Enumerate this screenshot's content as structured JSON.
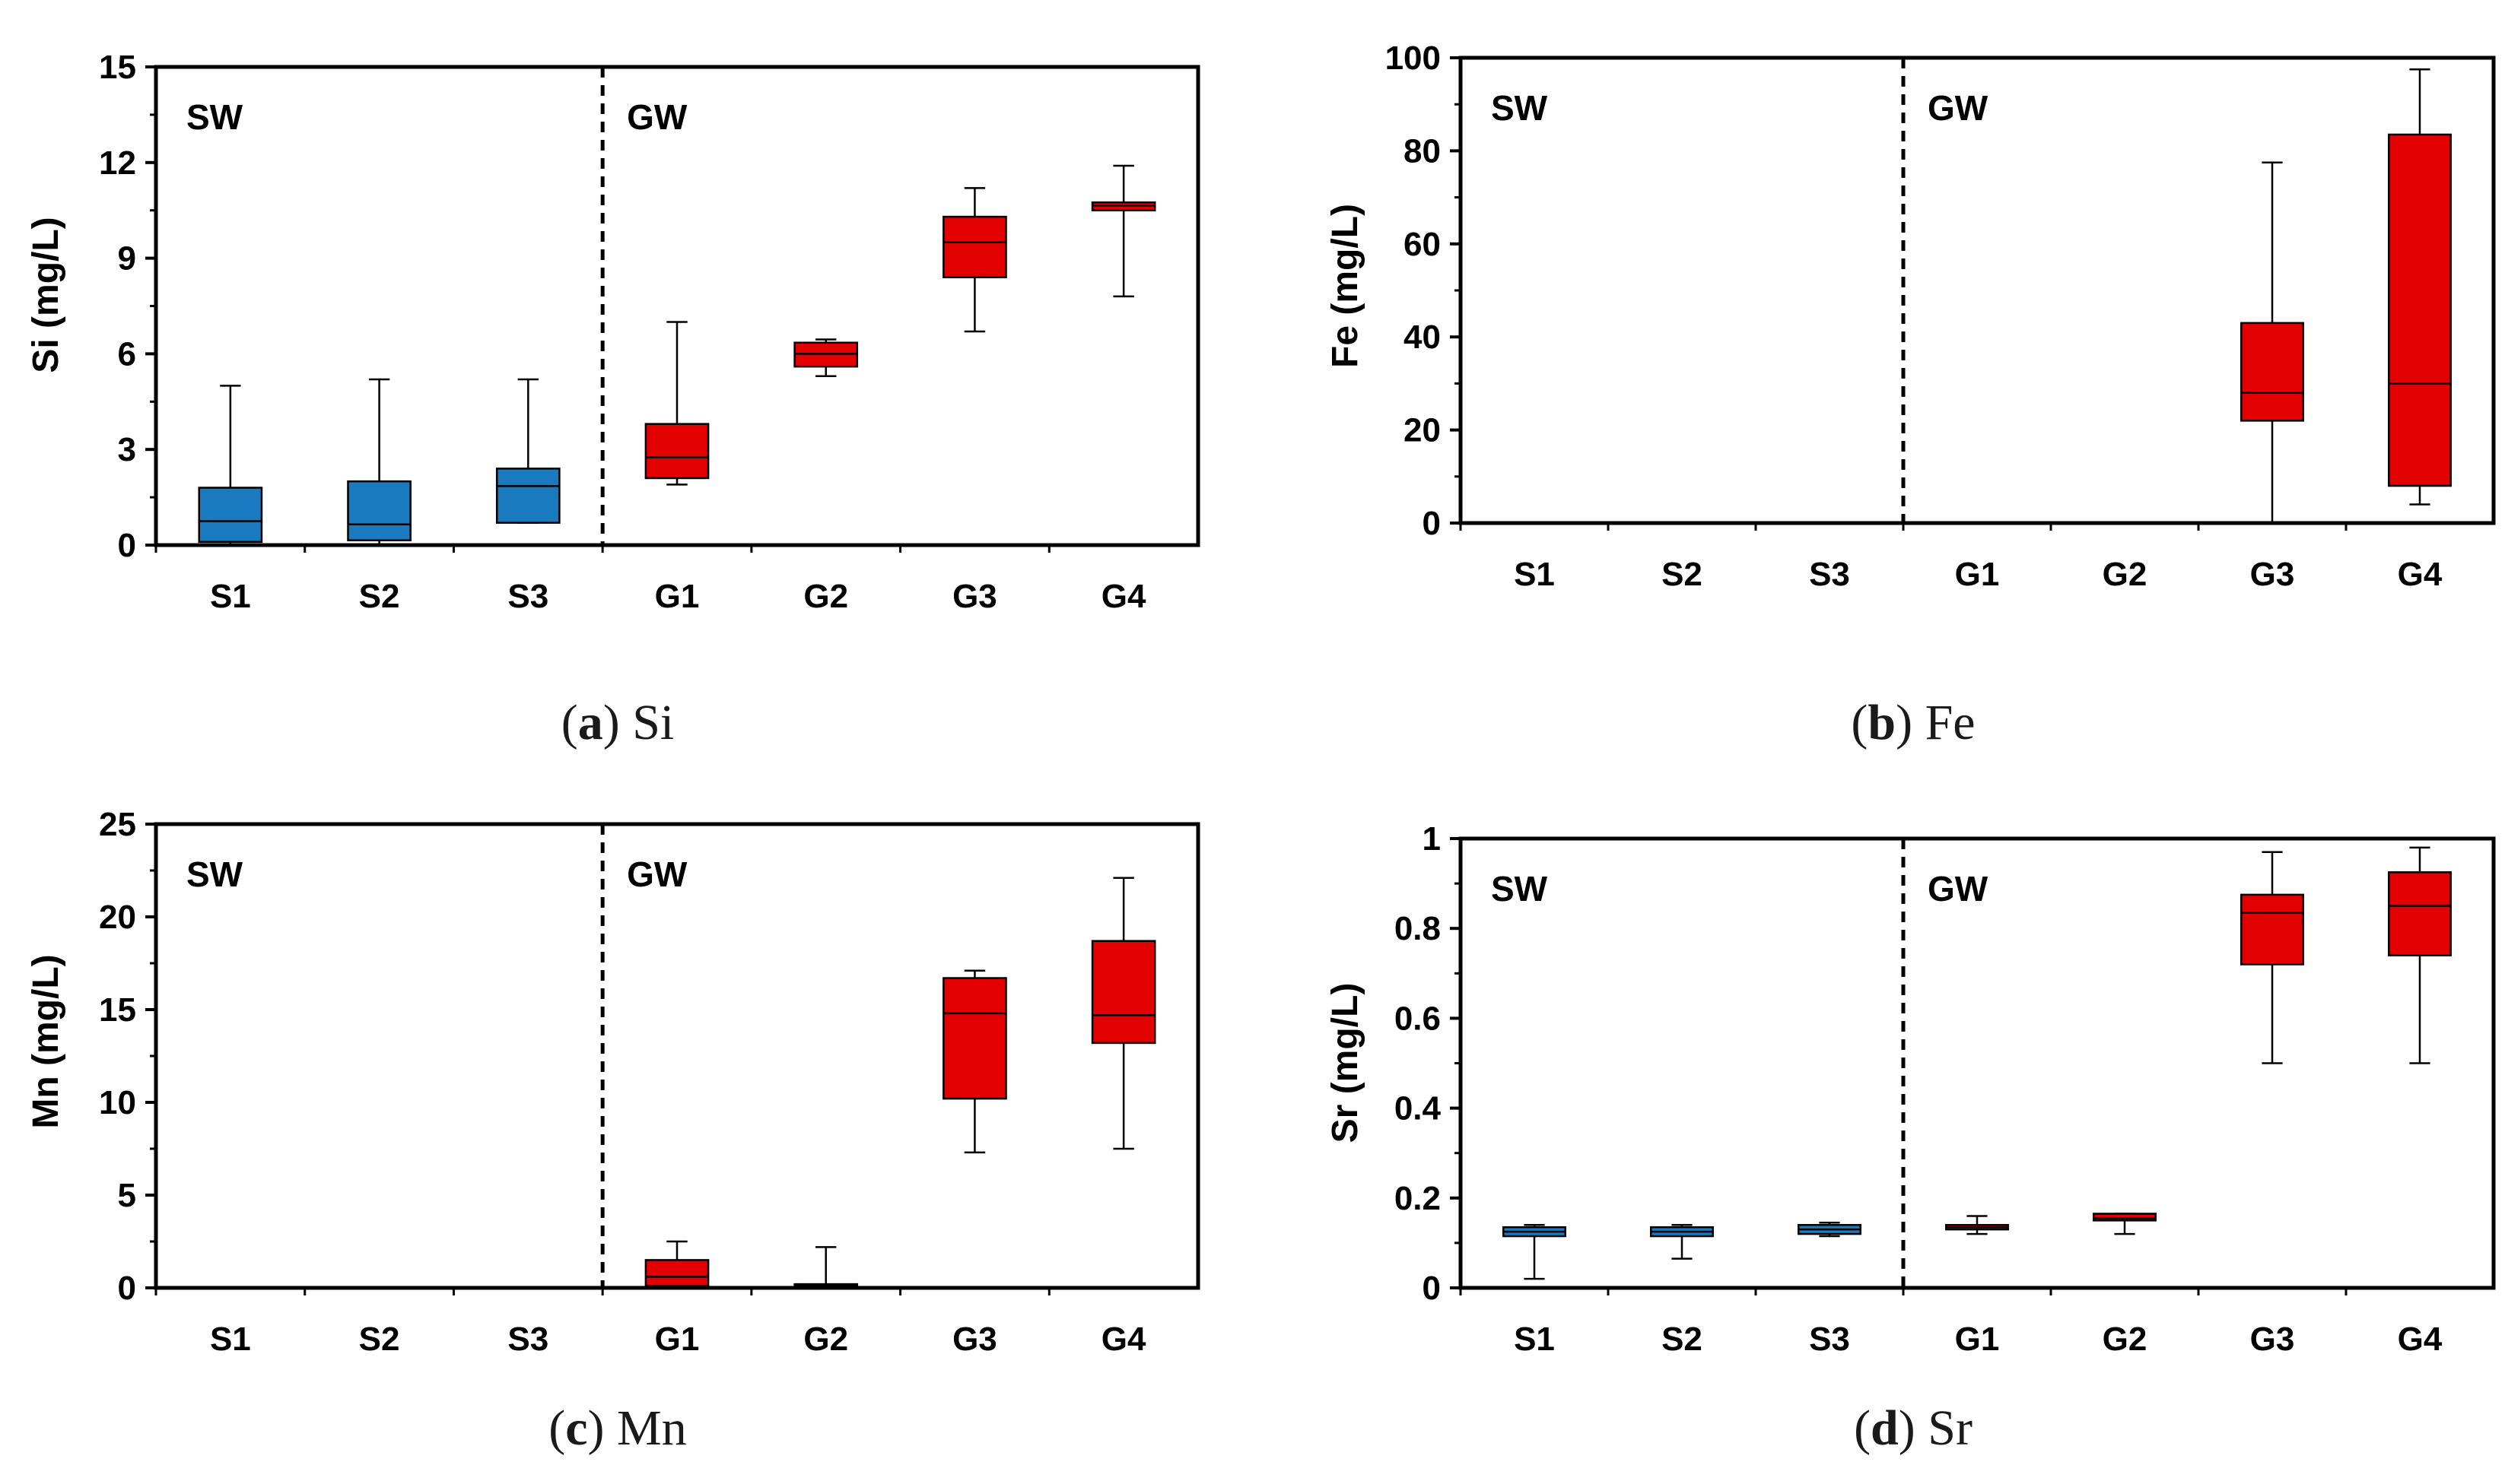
{
  "figure": {
    "description_free": true
  },
  "colors": {
    "sw": "#1a7abf",
    "gw": "#e30000",
    "axis": "#000000",
    "whisker": "#000000"
  },
  "chart_data": [
    {
      "type": "boxplot",
      "panel": "a",
      "caption_letter": "a",
      "caption_element": "Si",
      "ylabel": "Si (mg/L)",
      "ylim": [
        0,
        15
      ],
      "yticks": [
        0,
        3,
        6,
        9,
        12,
        15
      ],
      "categories": [
        "S1",
        "S2",
        "S3",
        "G1",
        "G2",
        "G3",
        "G4"
      ],
      "groups": [
        "sw",
        "sw",
        "sw",
        "gw",
        "gw",
        "gw",
        "gw"
      ],
      "region_labels": [
        "SW",
        "GW"
      ],
      "divider_after": 3,
      "boxes": [
        {
          "min": 0,
          "q1": 0.1,
          "median": 0.75,
          "q3": 1.8,
          "max": 5.0
        },
        {
          "min": 0,
          "q1": 0.15,
          "median": 0.65,
          "q3": 2.0,
          "max": 5.2
        },
        {
          "min": 0.7,
          "q1": 0.7,
          "median": 1.85,
          "q3": 2.4,
          "max": 5.2
        },
        {
          "min": 1.9,
          "q1": 2.1,
          "median": 2.75,
          "q3": 3.8,
          "max": 7.0
        },
        {
          "min": 5.3,
          "q1": 5.6,
          "median": 6.0,
          "q3": 6.35,
          "max": 6.45
        },
        {
          "min": 6.7,
          "q1": 8.4,
          "median": 9.5,
          "q3": 10.3,
          "max": 11.2
        },
        {
          "min": 7.8,
          "q1": 10.5,
          "median": 10.65,
          "q3": 10.75,
          "max": 11.9
        }
      ]
    },
    {
      "type": "boxplot",
      "panel": "b",
      "caption_letter": "b",
      "caption_element": "Fe",
      "ylabel": "Fe (mg/L)",
      "ylim": [
        0,
        100
      ],
      "yticks": [
        0,
        20,
        40,
        60,
        80,
        100
      ],
      "categories": [
        "S1",
        "S2",
        "S3",
        "G1",
        "G2",
        "G3",
        "G4"
      ],
      "groups": [
        "sw",
        "sw",
        "sw",
        "gw",
        "gw",
        "gw",
        "gw"
      ],
      "region_labels": [
        "SW",
        "GW"
      ],
      "divider_after": 3,
      "boxes": [
        {
          "min": 0,
          "q1": 0,
          "median": 0,
          "q3": 0,
          "max": 0
        },
        {
          "min": 0,
          "q1": 0,
          "median": 0,
          "q3": 0,
          "max": 0
        },
        {
          "min": 0,
          "q1": 0,
          "median": 0,
          "q3": 0,
          "max": 0
        },
        {
          "min": 0,
          "q1": 0,
          "median": 0,
          "q3": 0,
          "max": 0
        },
        {
          "min": 0,
          "q1": 0,
          "median": 0,
          "q3": 0,
          "max": 0
        },
        {
          "min": 0,
          "q1": 22,
          "median": 28,
          "q3": 43,
          "max": 77.5
        },
        {
          "min": 4,
          "q1": 8,
          "median": 30,
          "q3": 83.5,
          "max": 97.5
        }
      ]
    },
    {
      "type": "boxplot",
      "panel": "c",
      "caption_letter": "c",
      "caption_element": "Mn",
      "ylabel": "Mn (mg/L)",
      "ylim": [
        0,
        25
      ],
      "yticks": [
        0,
        5,
        10,
        15,
        20,
        25
      ],
      "categories": [
        "S1",
        "S2",
        "S3",
        "G1",
        "G2",
        "G3",
        "G4"
      ],
      "groups": [
        "sw",
        "sw",
        "sw",
        "gw",
        "gw",
        "gw",
        "gw"
      ],
      "region_labels": [
        "SW",
        "GW"
      ],
      "divider_after": 3,
      "boxes": [
        {
          "min": 0,
          "q1": 0,
          "median": 0,
          "q3": 0,
          "max": 0
        },
        {
          "min": 0,
          "q1": 0,
          "median": 0,
          "q3": 0,
          "max": 0
        },
        {
          "min": 0,
          "q1": 0,
          "median": 0,
          "q3": 0,
          "max": 0
        },
        {
          "min": 0,
          "q1": 0.1,
          "median": 0.6,
          "q3": 1.5,
          "max": 2.5
        },
        {
          "min": 0,
          "q1": 0.05,
          "median": 0.1,
          "q3": 0.2,
          "max": 2.2
        },
        {
          "min": 7.3,
          "q1": 10.2,
          "median": 14.8,
          "q3": 16.7,
          "max": 17.1
        },
        {
          "min": 7.5,
          "q1": 13.2,
          "median": 14.7,
          "q3": 18.7,
          "max": 22.1
        }
      ]
    },
    {
      "type": "boxplot",
      "panel": "d",
      "caption_letter": "d",
      "caption_element": "Sr",
      "ylabel": "Sr (mg/L)",
      "ylim": [
        0,
        1
      ],
      "yticks": [
        0,
        0.2,
        0.4,
        0.6,
        0.8,
        1
      ],
      "ytick_labels": [
        "0",
        "0.2",
        "0.4",
        "0.6",
        "0.8",
        "1"
      ],
      "categories": [
        "S1",
        "S2",
        "S3",
        "G1",
        "G2",
        "G3",
        "G4"
      ],
      "groups": [
        "sw",
        "sw",
        "sw",
        "gw",
        "gw",
        "gw",
        "gw"
      ],
      "region_labels": [
        "SW",
        "GW"
      ],
      "divider_after": 3,
      "boxes": [
        {
          "min": 0.02,
          "q1": 0.115,
          "median": 0.125,
          "q3": 0.135,
          "max": 0.14
        },
        {
          "min": 0.065,
          "q1": 0.115,
          "median": 0.125,
          "q3": 0.135,
          "max": 0.14
        },
        {
          "min": 0.115,
          "q1": 0.12,
          "median": 0.13,
          "q3": 0.14,
          "max": 0.145
        },
        {
          "min": 0.12,
          "q1": 0.13,
          "median": 0.135,
          "q3": 0.14,
          "max": 0.16
        },
        {
          "min": 0.12,
          "q1": 0.15,
          "median": 0.155,
          "q3": 0.165,
          "max": 0.165
        },
        {
          "min": 0.5,
          "q1": 0.72,
          "median": 0.835,
          "q3": 0.875,
          "max": 0.97
        },
        {
          "min": 0.5,
          "q1": 0.74,
          "median": 0.85,
          "q3": 0.925,
          "max": 0.98
        }
      ]
    }
  ]
}
